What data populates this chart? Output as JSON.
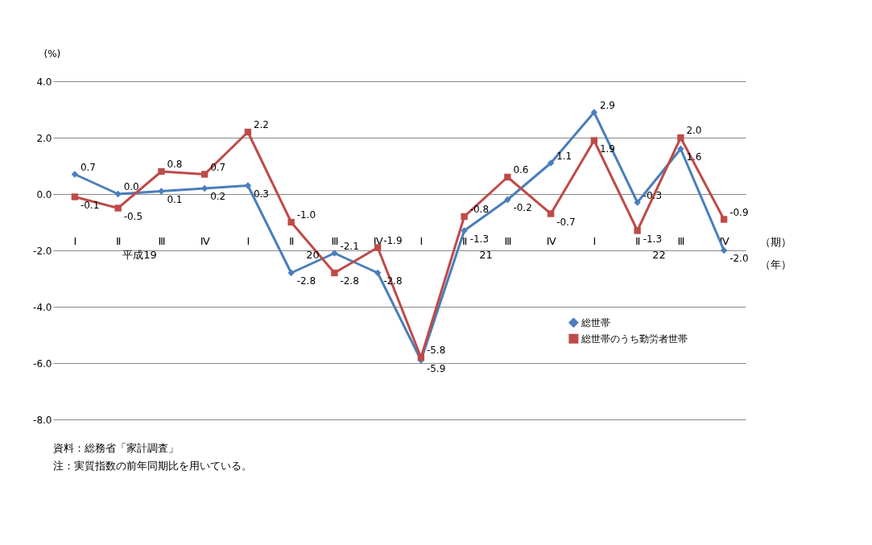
{
  "chart_data": {
    "type": "line",
    "ylabel": "(%)",
    "categories": [
      "Ⅰ",
      "Ⅱ",
      "Ⅲ",
      "Ⅳ",
      "Ⅰ",
      "Ⅱ",
      "Ⅲ",
      "Ⅳ",
      "Ⅰ",
      "Ⅱ",
      "Ⅲ",
      "Ⅳ",
      "Ⅰ",
      "Ⅱ",
      "Ⅲ",
      "Ⅳ"
    ],
    "series": [
      {
        "name": "総世帯",
        "color": "#4a7ebb",
        "marker": "diamond",
        "values": [
          0.7,
          0.0,
          0.1,
          0.2,
          0.3,
          -2.8,
          -2.1,
          -2.8,
          -5.9,
          -1.3,
          -0.2,
          1.1,
          2.9,
          -0.3,
          1.6,
          -2.0
        ],
        "value_labels": [
          "0.7",
          "0.0",
          "0.1",
          "0.2",
          "0.3",
          "-2.8",
          "-2.1",
          "-2.8",
          "-5.9",
          "-1.3",
          "-0.2",
          "1.1",
          "2.9",
          "-0.3",
          "1.6",
          "-2.0"
        ]
      },
      {
        "name": "総世帯のうち勤労者世帯",
        "color": "#be4b48",
        "marker": "square",
        "values": [
          -0.1,
          -0.5,
          0.8,
          0.7,
          2.2,
          -1.0,
          -2.8,
          -1.9,
          -5.8,
          -0.8,
          0.6,
          -0.7,
          1.9,
          -1.3,
          2.0,
          -0.9
        ],
        "value_labels": [
          "-0.1",
          "-0.5",
          "0.8",
          "0.7",
          "2.2",
          "-1.0",
          "-2.8",
          "-1.9",
          "-5.8",
          "-0.8",
          "0.6",
          "-0.7",
          "1.9",
          "-1.3",
          "2.0",
          "-0.9"
        ]
      }
    ],
    "ylim": [
      -8,
      4
    ],
    "yticks": [
      {
        "value": -8,
        "label": "-8.0"
      },
      {
        "value": -6,
        "label": "-6.0"
      },
      {
        "value": -4,
        "label": "-4.0"
      },
      {
        "value": -2,
        "label": "-2.0"
      },
      {
        "value": 0,
        "label": "0.0"
      },
      {
        "value": 2,
        "label": "2.0"
      },
      {
        "value": 4,
        "label": "4.0"
      }
    ],
    "grid": "y",
    "legend": "right",
    "annotations": [
      "平成19",
      "20",
      "21",
      "22",
      "（期）",
      "（年）",
      "資料：総務省「家計調査」",
      "　注：実質指数の前年同期比を用いている。"
    ]
  }
}
